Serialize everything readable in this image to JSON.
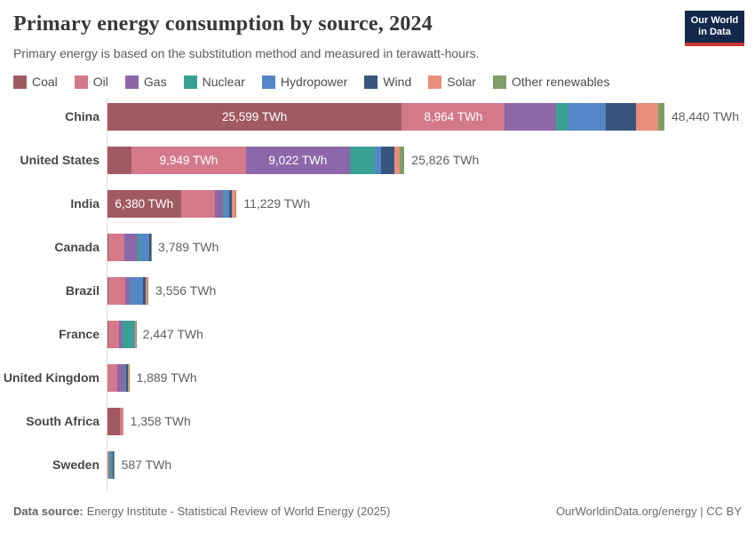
{
  "header": {
    "title": "Primary energy consumption by source, 2024",
    "subtitle": "Primary energy is based on the substitution method and measured in terawatt-hours.",
    "logo": {
      "line1": "Our World",
      "line2": "in Data",
      "bg_color": "#12294C",
      "accent_color": "#CE3631"
    }
  },
  "legend": {
    "items": [
      {
        "label": "Coal",
        "color": "#A15A61"
      },
      {
        "label": "Oil",
        "color": "#D4798A"
      },
      {
        "label": "Gas",
        "color": "#8C67AA"
      },
      {
        "label": "Nuclear",
        "color": "#38A194"
      },
      {
        "label": "Hydropower",
        "color": "#5586C7"
      },
      {
        "label": "Wind",
        "color": "#37557D"
      },
      {
        "label": "Solar",
        "color": "#E98E7B"
      },
      {
        "label": "Other renewables",
        "color": "#7F9D67"
      }
    ]
  },
  "chart_data": {
    "type": "bar",
    "orientation": "horizontal",
    "stacked": true,
    "unit": "TWh",
    "xlim": [
      0,
      48440
    ],
    "sources": [
      "Coal",
      "Oil",
      "Gas",
      "Nuclear",
      "Hydropower",
      "Wind",
      "Solar",
      "Other renewables"
    ],
    "colors": {
      "Coal": "#A15A61",
      "Oil": "#D4798A",
      "Gas": "#8C67AA",
      "Nuclear": "#38A194",
      "Hydropower": "#5586C7",
      "Wind": "#37557D",
      "Solar": "#E98E7B",
      "Other renewables": "#7F9D67"
    },
    "categories": [
      "China",
      "United States",
      "India",
      "Canada",
      "Brazil",
      "France",
      "United Kingdom",
      "South Africa",
      "Sweden"
    ],
    "rows": [
      {
        "country": "China",
        "total": 48440,
        "total_label": "48,440 TWh",
        "values": [
          25599,
          8964,
          4450,
          1000,
          3300,
          2650,
          1950,
          527
        ],
        "segment_labels": [
          "25,599 TWh",
          "8,964 TWh",
          null,
          null,
          null,
          null,
          null,
          null
        ]
      },
      {
        "country": "United States",
        "total": 25826,
        "total_label": "25,826 TWh",
        "values": [
          2100,
          9949,
          9022,
          2150,
          600,
          1100,
          480,
          425
        ],
        "segment_labels": [
          null,
          "9,949 TWh",
          "9,022 TWh",
          null,
          null,
          null,
          null,
          null
        ]
      },
      {
        "country": "India",
        "total": 11229,
        "total_label": "11,229 TWh",
        "values": [
          6380,
          3000,
          650,
          135,
          420,
          250,
          320,
          74
        ],
        "segment_labels": [
          "6,380 TWh",
          null,
          null,
          null,
          null,
          null,
          null,
          null
        ]
      },
      {
        "country": "Canada",
        "total": 3789,
        "total_label": "3,789 TWh",
        "values": [
          60,
          1420,
          1110,
          235,
          830,
          100,
          15,
          19
        ],
        "segment_labels": [
          null,
          null,
          null,
          null,
          null,
          null,
          null,
          null
        ]
      },
      {
        "country": "Brazil",
        "total": 3556,
        "total_label": "3,556 TWh",
        "values": [
          100,
          1480,
          370,
          40,
          1140,
          180,
          140,
          106
        ],
        "segment_labels": [
          null,
          null,
          null,
          null,
          null,
          null,
          null,
          null
        ]
      },
      {
        "country": "France",
        "total": 2447,
        "total_label": "2,447 TWh",
        "values": [
          50,
          930,
          360,
          950,
          120,
          20,
          10,
          7
        ],
        "segment_labels": [
          null,
          null,
          null,
          null,
          null,
          null,
          null,
          null
        ]
      },
      {
        "country": "United Kingdom",
        "total": 1889,
        "total_label": "1,889 TWh",
        "values": [
          20,
          820,
          670,
          100,
          15,
          180,
          35,
          49
        ],
        "segment_labels": [
          null,
          null,
          null,
          null,
          null,
          null,
          null,
          null
        ]
      },
      {
        "country": "South Africa",
        "total": 1358,
        "total_label": "1,358 TWh",
        "values": [
          1080,
          225,
          28,
          10,
          3,
          6,
          4,
          2
        ],
        "segment_labels": [
          null,
          null,
          null,
          null,
          null,
          null,
          null,
          null
        ]
      },
      {
        "country": "Sweden",
        "total": 587,
        "total_label": "587 TWh",
        "values": [
          5,
          180,
          5,
          130,
          170,
          80,
          5,
          12
        ],
        "segment_labels": [
          null,
          null,
          null,
          null,
          null,
          null,
          null,
          null
        ]
      }
    ]
  },
  "footer": {
    "source_label": "Data source:",
    "source_text": "Energy Institute - Statistical Review of World Energy (2025)",
    "credit": "OurWorldinData.org/energy | CC BY"
  }
}
